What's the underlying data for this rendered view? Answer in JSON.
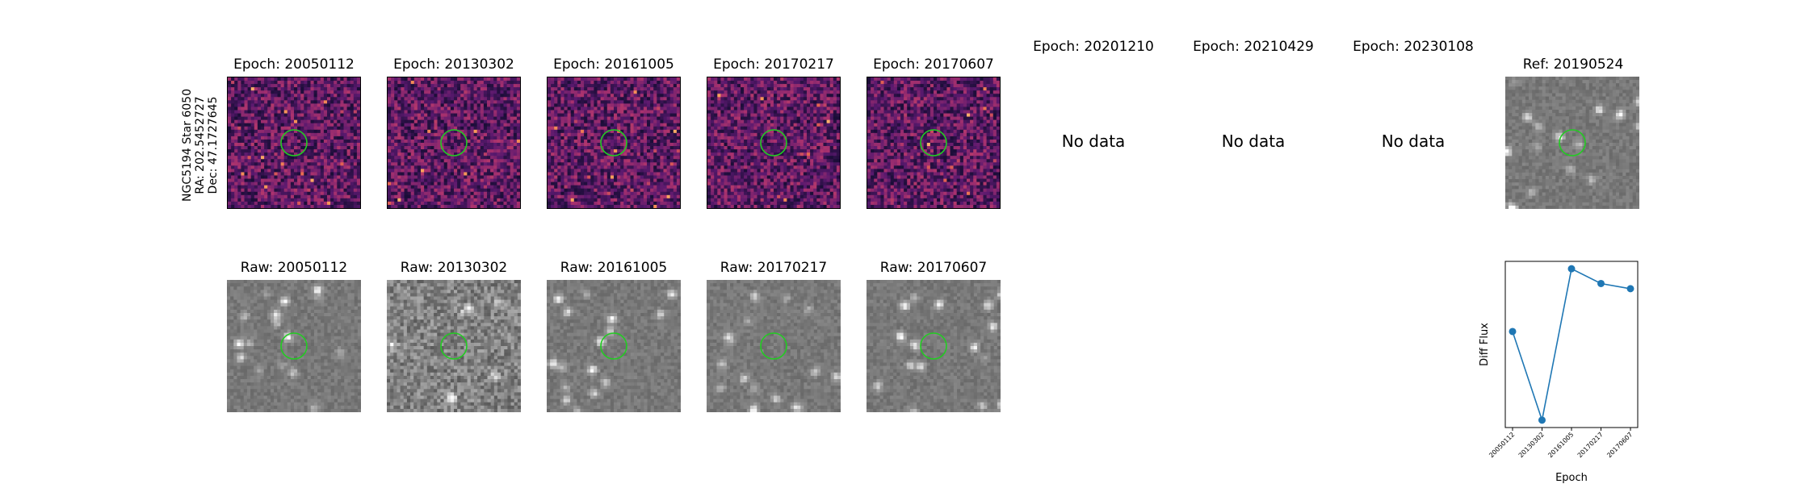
{
  "figure": {
    "row_label": [
      "NGC5194 Star 6050",
      "RA: 202.5452727",
      "Dec: 47.1727645"
    ],
    "no_data_text": "No data",
    "colors": {
      "circle": "#22cc22",
      "line": "#1f77b4",
      "frame": "#000000"
    }
  },
  "diff_epochs": [
    {
      "label": "Epoch: 20050112",
      "has_data": true
    },
    {
      "label": "Epoch: 20130302",
      "has_data": true
    },
    {
      "label": "Epoch: 20161005",
      "has_data": true
    },
    {
      "label": "Epoch: 20170217",
      "has_data": true
    },
    {
      "label": "Epoch: 20170607",
      "has_data": true
    },
    {
      "label": "Epoch: 20201210",
      "has_data": false
    },
    {
      "label": "Epoch: 20210429",
      "has_data": false
    },
    {
      "label": "Epoch: 20230108",
      "has_data": false
    }
  ],
  "reference": {
    "label": "Ref: 20190524"
  },
  "raw_epochs": [
    {
      "label": "Raw: 20050112"
    },
    {
      "label": "Raw: 20130302"
    },
    {
      "label": "Raw: 20161005"
    },
    {
      "label": "Raw: 20170217"
    },
    {
      "label": "Raw: 20170607"
    }
  ],
  "chart_data": {
    "type": "line",
    "title": "",
    "xlabel": "Epoch",
    "ylabel": "Diff Flux",
    "categories": [
      "20050112",
      "20130302",
      "20161005",
      "20170217",
      "20170607"
    ],
    "series": [
      {
        "name": "Diff Flux",
        "values": [
          0.2,
          -1.0,
          1.05,
          0.85,
          0.78
        ]
      }
    ],
    "ylim": [
      -1.1,
      1.15
    ],
    "grid": false,
    "y_ticks_shown": false
  }
}
